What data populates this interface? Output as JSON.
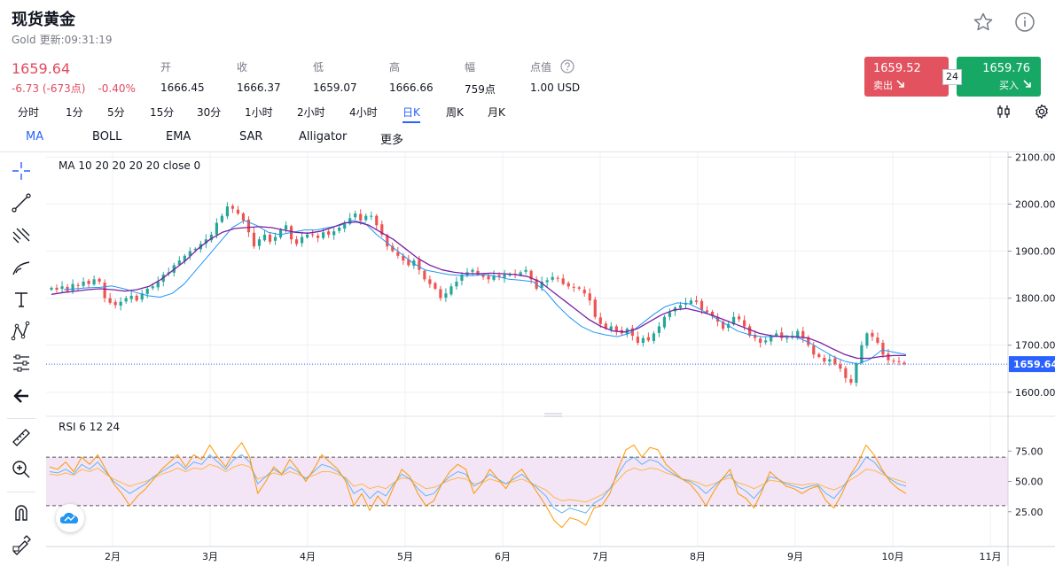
{
  "header": {
    "title": "现货黄金",
    "name": "Gold",
    "updated_label": "更新:09:31:19",
    "price": "1659.64",
    "change_abs": "-6.73 (-673点)",
    "change_pct": "-0.40%"
  },
  "stats": [
    {
      "label": "开",
      "value": "1666.45"
    },
    {
      "label": "收",
      "value": "1666.37"
    },
    {
      "label": "低",
      "value": "1659.07"
    },
    {
      "label": "高",
      "value": "1666.66"
    },
    {
      "label": "幅",
      "value": "759点"
    },
    {
      "label": "点值",
      "value": "1.00 USD"
    }
  ],
  "trade": {
    "sell_price": "1659.52",
    "sell_label": "卖出",
    "spread": "24",
    "buy_price": "1659.76",
    "buy_label": "买入"
  },
  "timeframes": [
    "分时",
    "1分",
    "5分",
    "15分",
    "30分",
    "1小时",
    "2小时",
    "4小时",
    "日K",
    "周K",
    "月K"
  ],
  "active_timeframe": "日K",
  "indicators": [
    "MA",
    "BOLL",
    "EMA",
    "SAR",
    "Alligator",
    "更多"
  ],
  "active_indicator": "MA",
  "colors": {
    "up": "#26a69a",
    "down": "#ef5350",
    "ma_fast": "#2196f3",
    "ma_slow": "#7b1fa2",
    "rsi_fast": "#ff9800",
    "rsi_mid": "#64b5f6",
    "rsi_slow": "#ffb74d",
    "accent": "#2962ff",
    "sell": "#e2525f",
    "buy": "#18a865"
  },
  "icons": [
    "star-icon",
    "info-icon",
    "help-icon",
    "compare-icon",
    "settings-icon",
    "crosshair-icon",
    "trend-line-icon",
    "fib-icon",
    "brush-icon",
    "text-icon",
    "pattern-icon",
    "measure-icon",
    "back-arrow-icon",
    "ruler-icon",
    "zoom-in-icon",
    "magnet-icon",
    "lock-draw-icon",
    "brand-logo-icon"
  ],
  "chart_data": {
    "type": "candlestick",
    "main_legend": "MA  10 20 20 20 20 close 0",
    "rsi_legend": "RSI  6 12 24",
    "y_ticks": [
      "2100.00",
      "2000.00",
      "1900.00",
      "1800.00",
      "1700.00",
      "1600.00"
    ],
    "ylim": [
      1560,
      2110
    ],
    "current_price_label": "1659.64",
    "current_price": 1659.64,
    "rsi_ticks": [
      "75.00",
      "50.00",
      "25.00"
    ],
    "rsi_ylim": [
      0,
      100
    ],
    "rsi_band": [
      30,
      70
    ],
    "x_ticks": [
      "2月",
      "3月",
      "4月",
      "5月",
      "6月",
      "7月",
      "8月",
      "9月",
      "10月",
      "11月"
    ],
    "close_path": [
      1822,
      1818,
      1825,
      1815,
      1830,
      1826,
      1835,
      1830,
      1840,
      1835,
      1800,
      1790,
      1785,
      1792,
      1800,
      1805,
      1795,
      1810,
      1820,
      1825,
      1835,
      1850,
      1855,
      1870,
      1880,
      1890,
      1900,
      1905,
      1915,
      1925,
      1935,
      1960,
      1975,
      1995,
      1990,
      1980,
      1965,
      1940,
      1910,
      1925,
      1935,
      1920,
      1930,
      1945,
      1955,
      1925,
      1915,
      1930,
      1935,
      1935,
      1928,
      1940,
      1935,
      1942,
      1950,
      1958,
      1970,
      1980,
      1965,
      1975,
      1975,
      1955,
      1935,
      1910,
      1900,
      1890,
      1880,
      1870,
      1880,
      1860,
      1840,
      1830,
      1820,
      1800,
      1810,
      1825,
      1835,
      1850,
      1855,
      1860,
      1850,
      1845,
      1840,
      1848,
      1845,
      1850,
      1850,
      1850,
      1855,
      1860,
      1840,
      1820,
      1835,
      1838,
      1845,
      1842,
      1830,
      1825,
      1822,
      1820,
      1810,
      1795,
      1760,
      1745,
      1735,
      1740,
      1730,
      1725,
      1735,
      1720,
      1705,
      1715,
      1710,
      1725,
      1740,
      1760,
      1770,
      1780,
      1785,
      1790,
      1795,
      1792,
      1775,
      1770,
      1762,
      1750,
      1735,
      1745,
      1760,
      1755,
      1740,
      1720,
      1715,
      1705,
      1710,
      1720,
      1725,
      1715,
      1715,
      1720,
      1730,
      1715,
      1700,
      1680,
      1675,
      1665,
      1670,
      1660,
      1650,
      1630,
      1620,
      1660,
      1700,
      1725,
      1718,
      1705,
      1680,
      1668,
      1665,
      1665,
      1660
    ],
    "ma_fast_path": [
      1818,
      1820,
      1822,
      1823,
      1826,
      1820,
      1812,
      1805,
      1802,
      1810,
      1830,
      1860,
      1890,
      1920,
      1950,
      1965,
      1955,
      1940,
      1935,
      1940,
      1945,
      1945,
      1950,
      1955,
      1965,
      1960,
      1935,
      1915,
      1895,
      1875,
      1860,
      1855,
      1850,
      1848,
      1848,
      1850,
      1846,
      1840,
      1838,
      1835,
      1815,
      1785,
      1760,
      1740,
      1728,
      1722,
      1718,
      1725,
      1745,
      1765,
      1782,
      1790,
      1788,
      1775,
      1760,
      1745,
      1730,
      1722,
      1718,
      1718,
      1720,
      1716,
      1705,
      1690,
      1675,
      1665,
      1660,
      1670,
      1690,
      1685,
      1680
    ],
    "ma_slow_path": [
      1808,
      1812,
      1815,
      1818,
      1820,
      1818,
      1815,
      1818,
      1825,
      1840,
      1860,
      1880,
      1905,
      1925,
      1940,
      1948,
      1950,
      1952,
      1950,
      1945,
      1940,
      1938,
      1942,
      1950,
      1960,
      1962,
      1955,
      1940,
      1925,
      1905,
      1885,
      1870,
      1860,
      1855,
      1852,
      1852,
      1853,
      1852,
      1850,
      1846,
      1835,
      1815,
      1795,
      1775,
      1755,
      1740,
      1730,
      1728,
      1735,
      1750,
      1765,
      1775,
      1778,
      1772,
      1765,
      1755,
      1745,
      1735,
      1725,
      1720,
      1718,
      1718,
      1715,
      1705,
      1692,
      1680,
      1672,
      1672,
      1676,
      1678,
      1678
    ],
    "rsi_fast_path": [
      62,
      60,
      66,
      58,
      70,
      64,
      72,
      60,
      48,
      40,
      30,
      38,
      44,
      52,
      60,
      66,
      72,
      62,
      72,
      68,
      80,
      70,
      62,
      74,
      82,
      70,
      40,
      50,
      62,
      56,
      68,
      60,
      50,
      60,
      72,
      66,
      60,
      50,
      30,
      40,
      26,
      38,
      30,
      46,
      60,
      54,
      40,
      30,
      34,
      48,
      58,
      64,
      60,
      40,
      48,
      60,
      52,
      44,
      55,
      60,
      50,
      40,
      30,
      18,
      12,
      20,
      18,
      14,
      28,
      30,
      40,
      60,
      76,
      80,
      70,
      78,
      76,
      64,
      58,
      52,
      48,
      40,
      30,
      42,
      52,
      60,
      40,
      36,
      28,
      42,
      58,
      52,
      46,
      44,
      40,
      44,
      46,
      34,
      28,
      40,
      55,
      65,
      80,
      72,
      60,
      50,
      44,
      40
    ],
    "rsi_mid_path": [
      58,
      57,
      60,
      56,
      64,
      60,
      66,
      58,
      50,
      45,
      40,
      44,
      48,
      54,
      58,
      62,
      66,
      60,
      66,
      64,
      72,
      66,
      60,
      68,
      72,
      66,
      48,
      54,
      60,
      56,
      62,
      58,
      52,
      58,
      64,
      62,
      58,
      52,
      40,
      44,
      36,
      42,
      38,
      48,
      56,
      52,
      44,
      38,
      40,
      48,
      54,
      58,
      56,
      46,
      50,
      56,
      52,
      48,
      52,
      56,
      50,
      44,
      38,
      28,
      24,
      28,
      26,
      24,
      32,
      36,
      44,
      56,
      66,
      70,
      64,
      68,
      66,
      60,
      56,
      52,
      50,
      46,
      40,
      46,
      52,
      56,
      46,
      42,
      36,
      44,
      54,
      52,
      48,
      46,
      44,
      46,
      47,
      40,
      36,
      44,
      54,
      60,
      70,
      66,
      58,
      52,
      48,
      46
    ],
    "rsi_slow_path": [
      56,
      55,
      57,
      55,
      60,
      58,
      61,
      56,
      52,
      49,
      46,
      48,
      50,
      53,
      56,
      58,
      61,
      58,
      61,
      60,
      64,
      62,
      58,
      62,
      64,
      62,
      52,
      54,
      57,
      55,
      58,
      56,
      53,
      55,
      58,
      58,
      56,
      53,
      46,
      48,
      44,
      46,
      44,
      49,
      53,
      52,
      48,
      44,
      45,
      48,
      51,
      53,
      52,
      48,
      49,
      52,
      50,
      48,
      50,
      52,
      49,
      46,
      43,
      37,
      34,
      35,
      34,
      33,
      36,
      39,
      44,
      51,
      58,
      61,
      59,
      61,
      60,
      57,
      55,
      52,
      51,
      49,
      46,
      48,
      51,
      53,
      49,
      47,
      44,
      47,
      51,
      50,
      49,
      48,
      47,
      48,
      48,
      45,
      43,
      46,
      51,
      55,
      60,
      59,
      56,
      53,
      51,
      49
    ]
  }
}
